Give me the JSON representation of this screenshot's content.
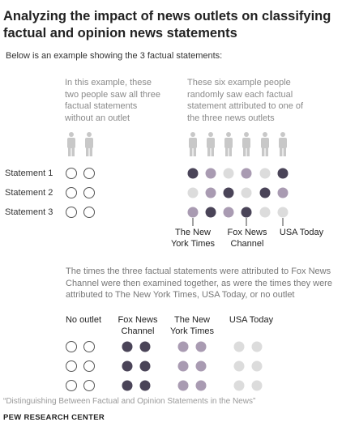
{
  "title": "Analyzing the impact of news outlets on classifying factual and opinion news statements",
  "intro": "Below is an example showing the 3 factual statements:",
  "note_no_outlet": "In this example, these two people saw all three factual statements without an outlet",
  "note_six_people": "These six example people randomly saw each factual statement attributed to one of the three news outlets",
  "statements": [
    "Statement 1",
    "Statement 2",
    "Statement 3"
  ],
  "outlet_labels": {
    "nyt": "The New York Times",
    "fox": "Fox News Channel",
    "usa": "USA Today"
  },
  "examined_text": "The times the three factual statements were attributed to Fox News Channel were then examined together, as were the times they were attributed to The New York Times, USA Today, or no outlet",
  "column_headers": {
    "no_outlet": "No outlet",
    "fox": "Fox News Channel",
    "nyt": "The New York Times",
    "usa": "USA Today"
  },
  "colors": {
    "no_outlet": "#ffffff",
    "fox": "#4a4458",
    "nyt": "#a99bb2",
    "usa": "#dcdcdc",
    "person": "#c8c8c8"
  },
  "example_grid": [
    [
      "fox",
      "nyt",
      "usa",
      "nyt",
      "usa",
      "fox"
    ],
    [
      "usa",
      "nyt",
      "fox",
      "usa",
      "fox",
      "nyt"
    ],
    [
      "nyt",
      "fox",
      "nyt",
      "fox",
      "usa",
      "usa"
    ]
  ],
  "source": "“Distinguishing Between Factual and Opinion Statements in the News”",
  "credit": "PEW RESEARCH CENTER"
}
